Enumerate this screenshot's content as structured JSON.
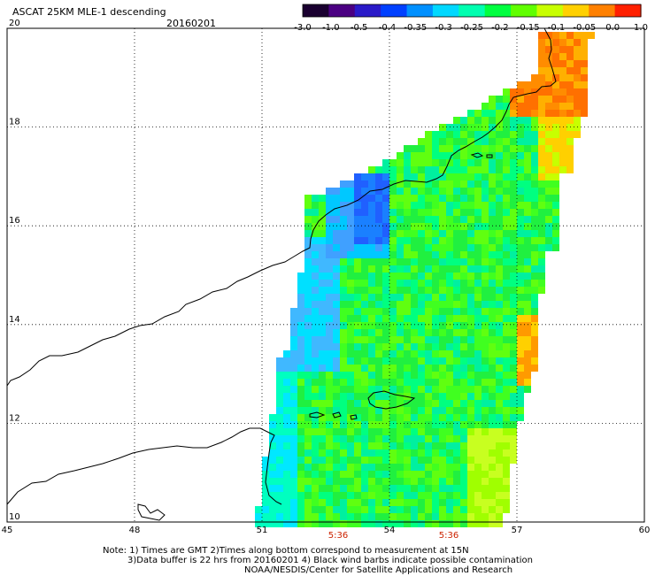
{
  "header": {
    "title": "ASCAT 25KM MLE-1 descending",
    "date": "20160201"
  },
  "colorbar": {
    "ticks": [
      "-3.0",
      "-1.0",
      "-0.5",
      "-0.4",
      "-0.35",
      "-0.3",
      "-0.25",
      "-0.2",
      "-0.15",
      "-0.1",
      "-0.05",
      "0.0",
      "1.0"
    ],
    "colors": [
      "#1a0030",
      "#4b0082",
      "#2a1ac8",
      "#0040ff",
      "#0090ff",
      "#00d8ff",
      "#00ffb0",
      "#00ff40",
      "#60ff00",
      "#c8ff00",
      "#ffd000",
      "#ff8000",
      "#ff2000"
    ]
  },
  "map": {
    "lon_labels": [
      "45",
      "48",
      "51",
      "54",
      "57",
      "60"
    ],
    "lat_labels": [
      "20",
      "18",
      "16",
      "14",
      "12",
      "10"
    ],
    "lon_range": [
      45,
      60
    ],
    "lat_range": [
      10,
      20
    ],
    "time_labels": [
      "5:36",
      "5:36"
    ],
    "time_color": "#cc2200",
    "grid": true
  },
  "notes": {
    "line1": "Note: 1) Times are GMT 2)Times along bottom correspond to measurement at 15N",
    "line2": "3)Data buffer is 22 hrs from 20160201 4) Black wind barbs indicate possible contamination",
    "line3": "NOAA/NESDIS/Center for Satellite Applications and Research"
  }
}
